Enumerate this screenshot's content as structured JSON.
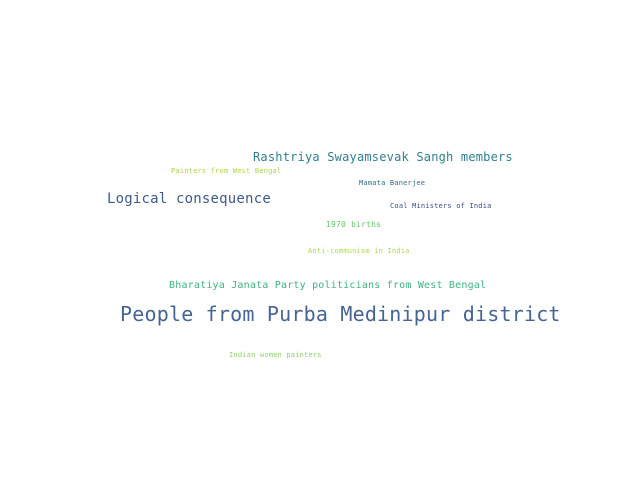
{
  "cloud": {
    "words": [
      {
        "text": "Rashtriya Swayamsevak Sangh members",
        "color": "#2f7f8f"
      },
      {
        "text": "Painters from West Bengal",
        "color": "#a7d84a"
      },
      {
        "text": "Mamata Banerjee",
        "color": "#2e6e8e"
      },
      {
        "text": "Logical consequence",
        "color": "#3b5b8e"
      },
      {
        "text": "Coal Ministers of India",
        "color": "#3d4a86"
      },
      {
        "text": "1970 births",
        "color": "#62c66a"
      },
      {
        "text": "Anti-communism in India",
        "color": "#a9d94f"
      },
      {
        "text": "Bharatiya Janata Party politicians from West Bengal",
        "color": "#3fb37f"
      },
      {
        "text": "People from Purba Medinipur district",
        "color": "#456493"
      },
      {
        "text": "Indian women painters",
        "color": "#8ed36a"
      }
    ]
  }
}
